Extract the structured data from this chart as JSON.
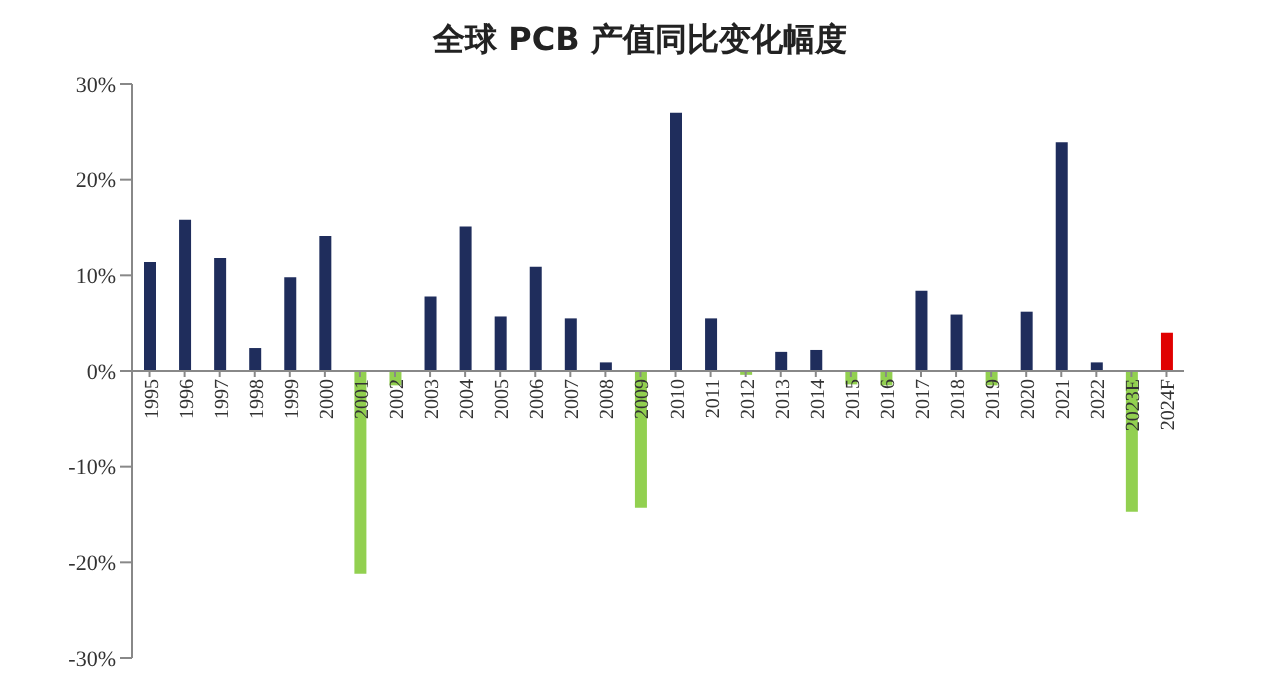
{
  "chart_data": {
    "type": "bar",
    "title": "全球 PCB 产值同比变化幅度",
    "categories": [
      "1995",
      "1996",
      "1997",
      "1998",
      "1999",
      "2000",
      "2001",
      "2002",
      "2003",
      "2004",
      "2005",
      "2006",
      "2007",
      "2008",
      "2009",
      "2010",
      "2011",
      "2012",
      "2013",
      "2014",
      "2015",
      "2016",
      "2017",
      "2018",
      "2019",
      "2020",
      "2021",
      "2022",
      "2023E",
      "2024F"
    ],
    "values": [
      11.4,
      15.8,
      11.8,
      2.4,
      9.8,
      14.1,
      -21.2,
      -1.5,
      7.8,
      15.1,
      5.7,
      10.9,
      5.5,
      0.9,
      -14.3,
      27.0,
      5.5,
      -0.4,
      2.0,
      2.2,
      -1.4,
      -1.5,
      8.4,
      5.9,
      -1.5,
      6.2,
      23.9,
      0.9,
      -14.7,
      4.0
    ],
    "colors": [
      "#1f2d5c",
      "#1f2d5c",
      "#1f2d5c",
      "#1f2d5c",
      "#1f2d5c",
      "#1f2d5c",
      "#92d050",
      "#92d050",
      "#1f2d5c",
      "#1f2d5c",
      "#1f2d5c",
      "#1f2d5c",
      "#1f2d5c",
      "#1f2d5c",
      "#92d050",
      "#1f2d5c",
      "#1f2d5c",
      "#92d050",
      "#1f2d5c",
      "#1f2d5c",
      "#92d050",
      "#92d050",
      "#1f2d5c",
      "#1f2d5c",
      "#92d050",
      "#1f2d5c",
      "#1f2d5c",
      "#1f2d5c",
      "#92d050",
      "#e00000"
    ],
    "ylim": [
      -30,
      30
    ],
    "yticks": [
      {
        "value": -30,
        "label": "-30%"
      },
      {
        "value": -20,
        "label": "-20%"
      },
      {
        "value": -10,
        "label": "-10%"
      },
      {
        "value": 0,
        "label": "0%"
      },
      {
        "value": 10,
        "label": "10%"
      },
      {
        "value": 20,
        "label": "20%"
      },
      {
        "value": 30,
        "label": "30%"
      }
    ],
    "grid": false,
    "legend": false
  }
}
